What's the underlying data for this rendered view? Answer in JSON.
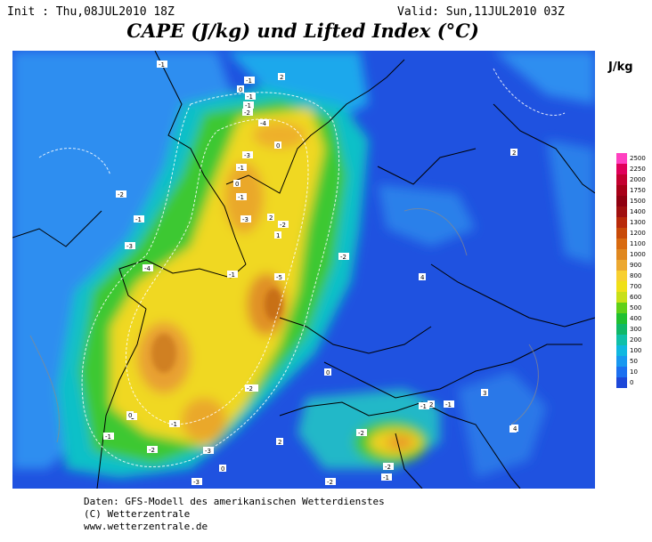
{
  "header": {
    "init": "Init : Thu,08JUL2010 18Z",
    "valid": "Valid: Sun,11JUL2010 03Z",
    "title": "CAPE (J/kg) und Lifted Index (°C)"
  },
  "legend": {
    "unit": "J/kg",
    "levels": [
      "2500",
      "2250",
      "2000",
      "1750",
      "1500",
      "1400",
      "1300",
      "1200",
      "1100",
      "1000",
      "900",
      "800",
      "700",
      "600",
      "500",
      "400",
      "300",
      "200",
      "100",
      "50",
      "10",
      "0"
    ],
    "colors": [
      "#ff40c0",
      "#e0005a",
      "#c40030",
      "#a80018",
      "#900010",
      "#a01010",
      "#b82a0a",
      "#c84a08",
      "#d86a10",
      "#e08820",
      "#eca830",
      "#f8d030",
      "#f0e018",
      "#c8e018",
      "#60d018",
      "#20c030",
      "#10b868",
      "#10c0a8",
      "#10b8e0",
      "#1898f0",
      "#1c70f0",
      "#1d48d8"
    ]
  },
  "footer": {
    "line1": "Daten: GFS-Modell des amerikanischen Wetterdienstes",
    "line2": "(C) Wetterzentrale",
    "line3": "www.wetterzentrale.de"
  },
  "map": {
    "background_color": "#1f52e0",
    "lifted_index_labels": [
      "-1",
      "2",
      "-1",
      "0",
      "-1",
      "-1",
      "-2",
      "0",
      "-4",
      "-3",
      "-1",
      "0",
      "-1",
      "-3",
      "2",
      "-2",
      "1",
      "-4",
      "-1",
      "-5",
      "-2",
      "-3",
      "-1",
      "-1",
      "-2",
      "-3",
      "0",
      "-2",
      "2",
      "-2",
      "0",
      "-1",
      "-3",
      "-2",
      "-2",
      "-2",
      "-2",
      "-1",
      "-2",
      "2",
      "-1",
      "3",
      "3",
      "2",
      "-1",
      "4",
      "4",
      "-1",
      "2",
      "4",
      "2",
      "0"
    ]
  }
}
